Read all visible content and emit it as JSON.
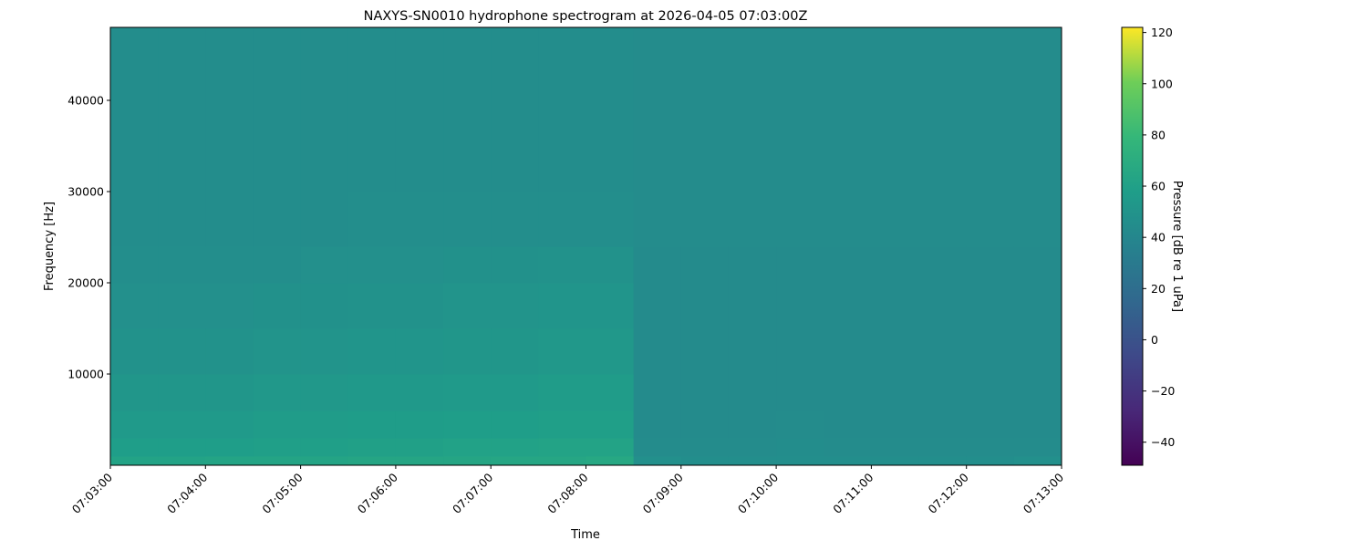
{
  "chart_data": {
    "type": "heatmap",
    "title": "NAXYS-SN0010 hydrophone spectrogram at 2026-04-05 07:03:00Z",
    "xlabel": "Time",
    "ylabel": "Frequency [Hz]",
    "colorbar_label": "Pressure [dB re 1 uPa]",
    "colormap": "viridis",
    "clim": [
      -49,
      122
    ],
    "colorbar_ticks": [
      -40,
      -20,
      0,
      20,
      40,
      60,
      80,
      100,
      120
    ],
    "xlim": [
      "07:03:00",
      "07:13:00"
    ],
    "x_ticks": [
      "07:03:00",
      "07:04:00",
      "07:05:00",
      "07:06:00",
      "07:07:00",
      "07:08:00",
      "07:09:00",
      "07:10:00",
      "07:11:00",
      "07:12:00",
      "07:13:00"
    ],
    "ylim": [
      0,
      48000
    ],
    "y_ticks": [
      10000,
      20000,
      30000,
      40000
    ],
    "time_bin_starts": [
      "07:03:00",
      "07:03:30",
      "07:04:00",
      "07:04:30",
      "07:05:00",
      "07:05:30",
      "07:06:00",
      "07:06:30",
      "07:07:00",
      "07:07:30",
      "07:08:00",
      "07:08:30",
      "07:09:00",
      "07:09:30",
      "07:10:00",
      "07:10:30",
      "07:11:00",
      "07:11:30",
      "07:12:00",
      "07:12:30"
    ],
    "freq_bin_edges": [
      0,
      1000,
      3000,
      6000,
      10000,
      15000,
      20000,
      24000,
      30000,
      40000,
      48000
    ],
    "values_db": [
      [
        62,
        62,
        63,
        63,
        63,
        64,
        64,
        64,
        65,
        65,
        66,
        47,
        46,
        46,
        46,
        46,
        46,
        46,
        46,
        47
      ],
      [
        58,
        58,
        58,
        59,
        59,
        60,
        60,
        61,
        61,
        62,
        62,
        44,
        44,
        44,
        45,
        44,
        44,
        44,
        44,
        44
      ],
      [
        55,
        55,
        55,
        56,
        56,
        57,
        57,
        58,
        58,
        59,
        59,
        43,
        43,
        43,
        44,
        43,
        43,
        43,
        43,
        43
      ],
      [
        52,
        52,
        52,
        53,
        53,
        54,
        54,
        55,
        55,
        56,
        56,
        43,
        43,
        43,
        43,
        43,
        43,
        43,
        43,
        43
      ],
      [
        49,
        49,
        49,
        50,
        50,
        51,
        51,
        52,
        52,
        53,
        53,
        43,
        43,
        43,
        43,
        43,
        43,
        43,
        43,
        43
      ],
      [
        47,
        47,
        47,
        48,
        48,
        49,
        49,
        50,
        50,
        51,
        51,
        43,
        43,
        43,
        43,
        43,
        43,
        43,
        43,
        43
      ],
      [
        46,
        46,
        46,
        46,
        47,
        47,
        47,
        48,
        48,
        49,
        49,
        43,
        43,
        43,
        43,
        43,
        43,
        43,
        43,
        43
      ],
      [
        45,
        45,
        45,
        45,
        45,
        46,
        46,
        46,
        46,
        46,
        46,
        44,
        44,
        44,
        44,
        44,
        44,
        44,
        44,
        44
      ],
      [
        45,
        45,
        45,
        45,
        45,
        45,
        45,
        45,
        45,
        45,
        45,
        44,
        44,
        44,
        44,
        44,
        44,
        44,
        44,
        44
      ],
      [
        45,
        45,
        45,
        45,
        45,
        45,
        45,
        45,
        45,
        45,
        45,
        44,
        44,
        44,
        44,
        44,
        44,
        44,
        44,
        44
      ]
    ]
  }
}
